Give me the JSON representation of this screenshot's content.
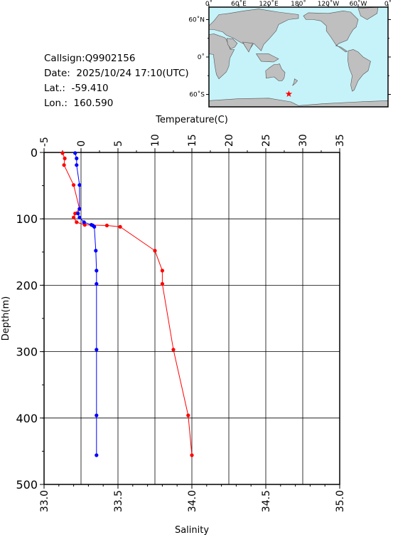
{
  "info": {
    "callsign": "Callsign:Q9902156",
    "date": "Date:  2025/10/24 17:10(UTC)",
    "lat": "Lat.:  -59.410",
    "lon": "Lon.:  160.590"
  },
  "map": {
    "top_ticks": [
      "0˚",
      "60˚E",
      "120˚E",
      "180˚",
      "120˚W",
      "60˚W",
      "0˚"
    ],
    "side_ticks": [
      "60˚N",
      "0˚",
      "60˚S"
    ],
    "station": {
      "lat": -59.41,
      "lon": 160.59
    },
    "colors": {
      "ocean": "#c6f3f9",
      "land": "#bfbfbf",
      "marker": "#ff0000"
    },
    "marker_icon": "star-icon"
  },
  "chart_data": {
    "type": "line",
    "y_axis": {
      "label": "Depth(m)",
      "range": [
        0,
        500
      ],
      "ticks": [
        0,
        100,
        200,
        300,
        400,
        500
      ],
      "inverted": true
    },
    "top_axis": {
      "label": "Temperature(C)",
      "range": [
        -5,
        35
      ],
      "ticks": [
        -5,
        0,
        5,
        10,
        15,
        20,
        25,
        30,
        35
      ]
    },
    "bottom_axis": {
      "label": "Salinity",
      "range": [
        33.0,
        35.0
      ],
      "ticks": [
        "33.0",
        "33.5",
        "34.0",
        "34.5",
        "35.0"
      ]
    },
    "grid": true,
    "series": [
      {
        "axis": "top",
        "color": "#ff0000",
        "points": [
          [
            -2.5,
            1
          ],
          [
            -2.2,
            9
          ],
          [
            -2.3,
            19
          ],
          [
            -1.0,
            49
          ],
          [
            -0.2,
            85
          ],
          [
            -0.8,
            92
          ],
          [
            -1.0,
            98
          ],
          [
            -0.6,
            105
          ],
          [
            0.5,
            109
          ],
          [
            3.5,
            110
          ],
          [
            5.3,
            112
          ],
          [
            10.0,
            148
          ],
          [
            11.0,
            178
          ],
          [
            11.0,
            198
          ],
          [
            12.5,
            297
          ],
          [
            14.5,
            396
          ],
          [
            15.0,
            456
          ]
        ]
      },
      {
        "axis": "bottom",
        "color": "#0000ff",
        "points": [
          [
            33.21,
            1
          ],
          [
            33.22,
            9
          ],
          [
            33.22,
            19
          ],
          [
            33.24,
            49
          ],
          [
            33.24,
            85
          ],
          [
            33.23,
            92
          ],
          [
            33.24,
            98
          ],
          [
            33.27,
            105
          ],
          [
            33.32,
            109
          ],
          [
            33.33,
            110
          ],
          [
            33.34,
            112
          ],
          [
            33.35,
            148
          ],
          [
            33.355,
            178
          ],
          [
            33.355,
            198
          ],
          [
            33.355,
            297
          ],
          [
            33.355,
            396
          ],
          [
            33.355,
            456
          ]
        ]
      }
    ]
  }
}
